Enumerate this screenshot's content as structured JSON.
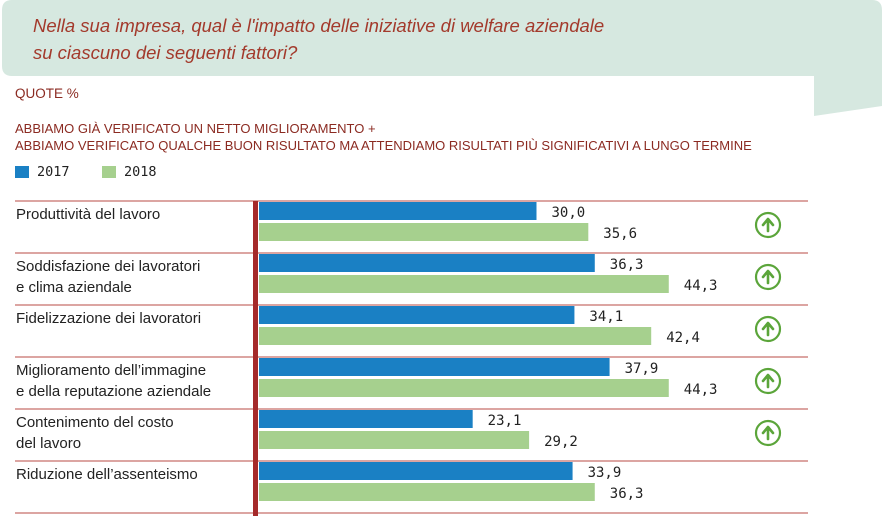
{
  "question": {
    "line1": "Nella sua impresa, qual è l'impatto delle iniziative di welfare aziendale",
    "line2": "su ciascuno dei seguenti fattori?"
  },
  "unit_label": "QUOTE %",
  "header": {
    "line1": "ABBIAMO GIÀ VERIFICATO UN NETTO MIGLIORAMENTO +",
    "line2": "ABBIAMO VERIFICATO QUALCHE BUON RISULTATO MA ATTENDIAMO RISULTATI PIÙ SIGNIFICATIVI A LUNGO TERMINE"
  },
  "colors": {
    "bubble": "#d6e8e0",
    "series_2017": "#1a80c4",
    "series_2018": "#a6d08e",
    "axis": "#a52a2a",
    "row_divider": "#b84b46",
    "arrow": "#5ba53a",
    "title_text": "#a33a2c"
  },
  "icons": {
    "trend": "up-arrow-circle-icon"
  },
  "chart_data": {
    "type": "bar",
    "orientation": "horizontal",
    "categories": [
      [
        "Produttività del lavoro"
      ],
      [
        "Soddisfazione dei lavoratori",
        "e clima aziendale"
      ],
      [
        "Fidelizzazione dei lavoratori"
      ],
      [
        "Miglioramento dell’immagine",
        "e della reputazione aziendale"
      ],
      [
        "Contenimento del costo",
        "del lavoro"
      ],
      [
        "Riduzione dell’assenteismo"
      ]
    ],
    "series": [
      {
        "name": "2017",
        "values": [
          30.0,
          36.3,
          34.1,
          37.9,
          23.1,
          33.9
        ],
        "labels": [
          "30,0",
          "36,3",
          "34,1",
          "37,9",
          "23,1",
          "33,9"
        ]
      },
      {
        "name": "2018",
        "values": [
          35.6,
          44.3,
          42.4,
          44.3,
          29.2,
          36.3
        ],
        "labels": [
          "35,6",
          "44,3",
          "42,4",
          "44,3",
          "29,2",
          "36,3"
        ]
      }
    ],
    "trend_up": [
      true,
      true,
      true,
      true,
      true,
      false
    ],
    "xlim": [
      0,
      50
    ],
    "grid": false,
    "legend": "top-left"
  }
}
